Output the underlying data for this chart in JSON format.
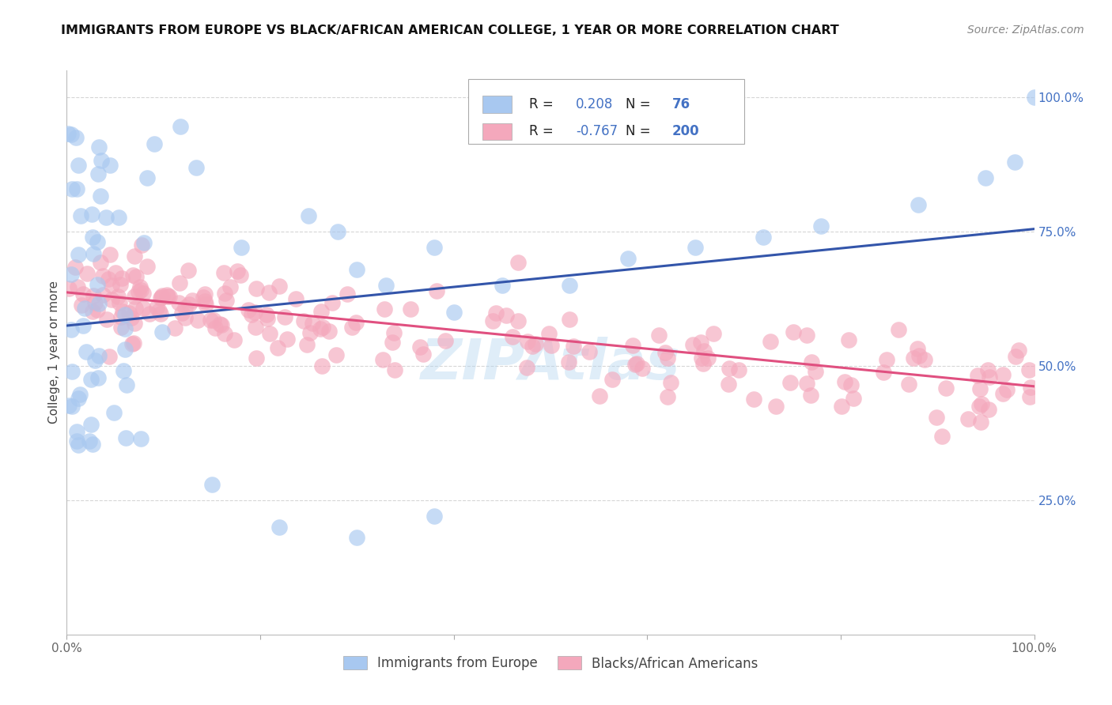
{
  "title": "IMMIGRANTS FROM EUROPE VS BLACK/AFRICAN AMERICAN COLLEGE, 1 YEAR OR MORE CORRELATION CHART",
  "source": "Source: ZipAtlas.com",
  "ylabel": "College, 1 year or more",
  "xlim": [
    0,
    1
  ],
  "ylim": [
    0,
    1.05
  ],
  "xtick_positions": [
    0.0,
    0.2,
    0.4,
    0.6,
    0.8,
    1.0
  ],
  "xticklabels": [
    "0.0%",
    "",
    "",
    "",
    "",
    "100.0%"
  ],
  "ytick_right_labels": [
    "25.0%",
    "50.0%",
    "75.0%",
    "100.0%"
  ],
  "ytick_right_positions": [
    0.25,
    0.5,
    0.75,
    1.0
  ],
  "R_blue": 0.208,
  "N_blue": 76,
  "R_pink": -0.767,
  "N_pink": 200,
  "blue_color": "#A8C8F0",
  "pink_color": "#F4A8BC",
  "blue_line_color": "#3355AA",
  "pink_line_color": "#E05080",
  "legend_label_blue": "Immigrants from Europe",
  "legend_label_pink": "Blacks/African Americans",
  "watermark": "ZipAtlas",
  "background_color": "#FFFFFF",
  "grid_color": "#CCCCCC",
  "blue_line_start_y": 0.575,
  "blue_line_end_y": 0.755,
  "pink_line_start_y": 0.637,
  "pink_line_end_y": 0.462
}
